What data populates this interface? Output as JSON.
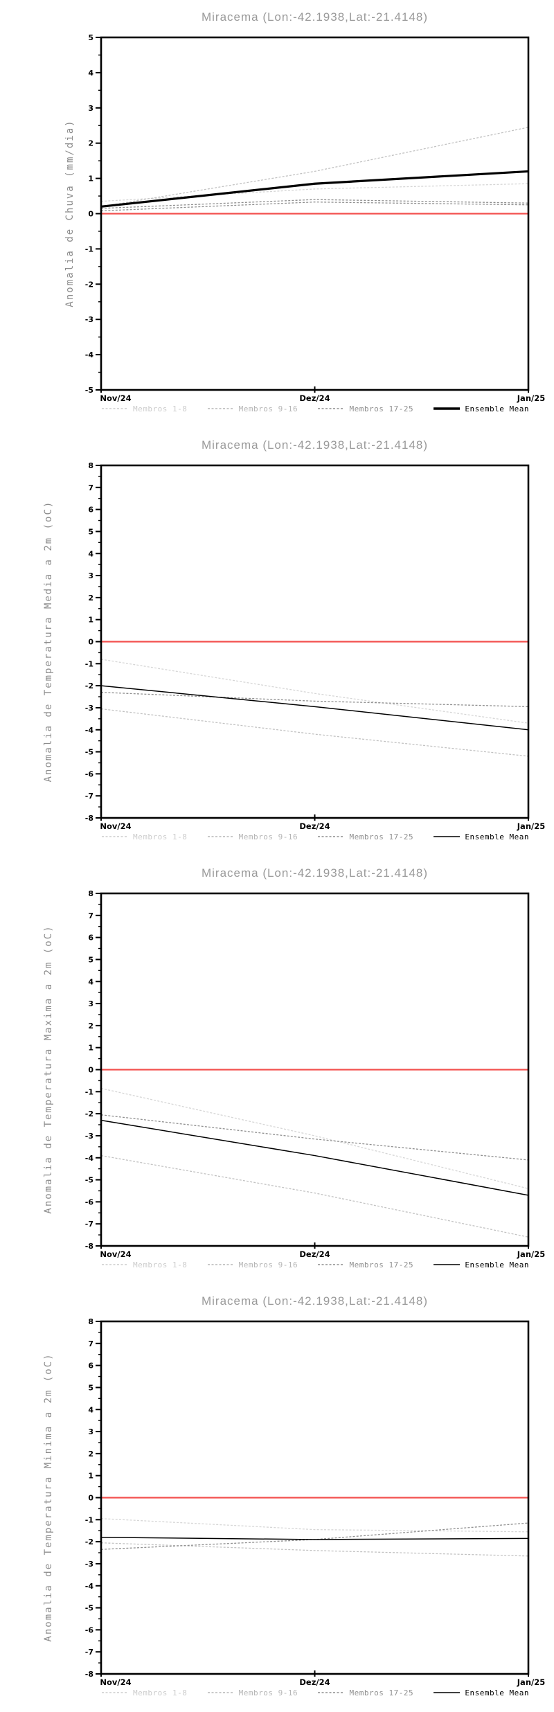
{
  "chart_data": [
    {
      "type": "line",
      "title": "Miracema (Lon:-42.1938,Lat:-21.4148)",
      "ylabel": "Anomalia de Chuva (mm/dia)",
      "x": [
        "Nov/24",
        "Dez/24",
        "Jan/25"
      ],
      "ylim": [
        -5,
        5
      ],
      "ytick_step": 1,
      "grid": false,
      "legend_position": "bottom",
      "zero_line": {
        "value": 0,
        "color": "#f3504e"
      },
      "series": [
        {
          "name": "Membros 1-8",
          "color": "#d6d6d6",
          "style": "dashed",
          "width": 1.3,
          "values": [
            0.35,
            0.7,
            0.85
          ]
        },
        {
          "name": "Membros 9-16",
          "color": "#c2c2c2",
          "style": "dashed",
          "width": 1.3,
          "values": [
            0.2,
            1.2,
            2.45
          ]
        },
        {
          "name": "Membros 17-25",
          "color": "#8f8f8f",
          "style": "dashed",
          "width": 1.3,
          "values": [
            0.15,
            0.4,
            0.3
          ]
        },
        {
          "name": "Membros 17-25",
          "color": "#8f8f8f",
          "style": "dashed",
          "width": 1.3,
          "values": [
            0.08,
            0.33,
            0.25
          ]
        },
        {
          "name": "Ensemble Mean",
          "color": "#000000",
          "style": "solid",
          "width": 3.2,
          "values": [
            0.2,
            0.85,
            1.2
          ]
        }
      ],
      "legend": [
        {
          "label": "Membros 1-8",
          "color": "#cccccc",
          "style": "dashed",
          "thick": false
        },
        {
          "label": "Membros 9-16",
          "color": "#b5b5b5",
          "style": "dashed",
          "thick": false
        },
        {
          "label": "Membros 17-25",
          "color": "#8e8e8e",
          "style": "dashed",
          "thick": false
        },
        {
          "label": "Ensemble Mean",
          "color": "#000000",
          "style": "solid",
          "thick": true
        }
      ]
    },
    {
      "type": "line",
      "title": "Miracema (Lon:-42.1938,Lat:-21.4148)",
      "ylabel": "Anomalia de Temperatura Media a 2m (oC)",
      "x": [
        "Nov/24",
        "Dez/24",
        "Jan/25"
      ],
      "ylim": [
        -8,
        8
      ],
      "ytick_step": 1,
      "grid": false,
      "legend_position": "bottom",
      "zero_line": {
        "value": 0,
        "color": "#f3504e"
      },
      "series": [
        {
          "name": "Membros 1-8",
          "color": "#d6d6d6",
          "style": "dashed",
          "width": 1.3,
          "values": [
            -0.8,
            -2.35,
            -3.7
          ]
        },
        {
          "name": "Membros 9-16",
          "color": "#c2c2c2",
          "style": "dashed",
          "width": 1.3,
          "values": [
            -3.05,
            -4.2,
            -5.2
          ]
        },
        {
          "name": "Membros 17-25",
          "color": "#8f8f8f",
          "style": "dashed",
          "width": 1.3,
          "values": [
            -2.3,
            -2.7,
            -2.95
          ]
        },
        {
          "name": "Ensemble Mean",
          "color": "#000000",
          "style": "solid",
          "width": 1.5,
          "values": [
            -2.0,
            -2.95,
            -4.0
          ]
        }
      ],
      "legend": [
        {
          "label": "Membros 1-8",
          "color": "#cccccc",
          "style": "dashed",
          "thick": false
        },
        {
          "label": "Membros 9-16",
          "color": "#b5b5b5",
          "style": "dashed",
          "thick": false
        },
        {
          "label": "Membros 17-25",
          "color": "#8e8e8e",
          "style": "dashed",
          "thick": false
        },
        {
          "label": "Ensemble Mean",
          "color": "#000000",
          "style": "solid",
          "thick": false
        }
      ]
    },
    {
      "type": "line",
      "title": "Miracema (Lon:-42.1938,Lat:-21.4148)",
      "ylabel": "Anomalia de Temperatura Maxima a 2m (oC)",
      "x": [
        "Nov/24",
        "Dez/24",
        "Jan/25"
      ],
      "ylim": [
        -8,
        8
      ],
      "ytick_step": 1,
      "grid": false,
      "legend_position": "bottom",
      "zero_line": {
        "value": 0,
        "color": "#f3504e"
      },
      "series": [
        {
          "name": "Membros 1-8",
          "color": "#d6d6d6",
          "style": "dashed",
          "width": 1.3,
          "values": [
            -0.85,
            -3.0,
            -5.4
          ]
        },
        {
          "name": "Membros 9-16",
          "color": "#c2c2c2",
          "style": "dashed",
          "width": 1.3,
          "values": [
            -3.9,
            -5.6,
            -7.6
          ]
        },
        {
          "name": "Membros 17-25",
          "color": "#8f8f8f",
          "style": "dashed",
          "width": 1.3,
          "values": [
            -2.05,
            -3.15,
            -4.1
          ]
        },
        {
          "name": "Ensemble Mean",
          "color": "#000000",
          "style": "solid",
          "width": 1.5,
          "values": [
            -2.3,
            -3.9,
            -5.7
          ]
        }
      ],
      "legend": [
        {
          "label": "Membros 1-8",
          "color": "#cccccc",
          "style": "dashed",
          "thick": false
        },
        {
          "label": "Membros 9-16",
          "color": "#b5b5b5",
          "style": "dashed",
          "thick": false
        },
        {
          "label": "Membros 17-25",
          "color": "#8e8e8e",
          "style": "dashed",
          "thick": false
        },
        {
          "label": "Ensemble Mean",
          "color": "#000000",
          "style": "solid",
          "thick": false
        }
      ]
    },
    {
      "type": "line",
      "title": "Miracema (Lon:-42.1938,Lat:-21.4148)",
      "ylabel": "Anomalia de Temperatura Minima a 2m (oC)",
      "x": [
        "Nov/24",
        "Dez/24",
        "Jan/25"
      ],
      "ylim": [
        -8,
        8
      ],
      "ytick_step": 1,
      "grid": false,
      "legend_position": "bottom",
      "zero_line": {
        "value": 0,
        "color": "#f3504e"
      },
      "series": [
        {
          "name": "Membros 1-8",
          "color": "#d6d6d6",
          "style": "dashed",
          "width": 1.3,
          "values": [
            -0.95,
            -1.45,
            -1.55
          ]
        },
        {
          "name": "Membros 9-16",
          "color": "#c2c2c2",
          "style": "dashed",
          "width": 1.3,
          "values": [
            -2.05,
            -2.4,
            -2.65
          ]
        },
        {
          "name": "Membros 17-25",
          "color": "#8f8f8f",
          "style": "dashed",
          "width": 1.3,
          "values": [
            -2.35,
            -1.9,
            -1.15
          ]
        },
        {
          "name": "Ensemble Mean",
          "color": "#000000",
          "style": "solid",
          "width": 1.5,
          "values": [
            -1.8,
            -1.9,
            -1.85
          ]
        }
      ],
      "legend": [
        {
          "label": "Membros 1-8",
          "color": "#cccccc",
          "style": "dashed",
          "thick": false
        },
        {
          "label": "Membros 9-16",
          "color": "#b5b5b5",
          "style": "dashed",
          "thick": false
        },
        {
          "label": "Membros 17-25",
          "color": "#8e8e8e",
          "style": "dashed",
          "thick": false
        },
        {
          "label": "Ensemble Mean",
          "color": "#000000",
          "style": "solid",
          "thick": false
        }
      ]
    }
  ]
}
